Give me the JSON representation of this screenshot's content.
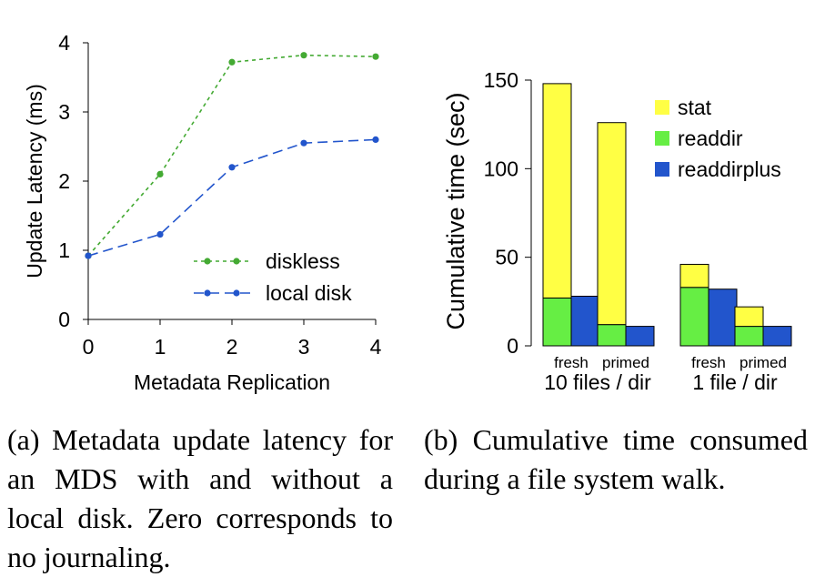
{
  "chart_data": [
    {
      "type": "line",
      "xlabel": "Metadata Replication",
      "ylabel": "Update Latency (ms)",
      "x": [
        0,
        1,
        2,
        3,
        4
      ],
      "xlim": [
        0,
        4
      ],
      "ylim": [
        0,
        4
      ],
      "xticks": [
        "0",
        "1",
        "2",
        "3",
        "4"
      ],
      "yticks": [
        "0",
        "1",
        "2",
        "3",
        "4"
      ],
      "grid": false,
      "legend_position": "bottom-right",
      "series": [
        {
          "name": "diskless",
          "values": [
            0.92,
            2.1,
            3.72,
            3.82,
            3.8
          ],
          "color": "#44aa33",
          "style": "dotted"
        },
        {
          "name": "local disk",
          "values": [
            0.92,
            1.23,
            2.2,
            2.55,
            2.6
          ],
          "color": "#2255cc",
          "style": "dashed"
        }
      ]
    },
    {
      "type": "bar",
      "stacked": true,
      "ylabel": "Cumulative time (sec)",
      "ylim": [
        0,
        150
      ],
      "yticks": [
        "0",
        "50",
        "100",
        "150"
      ],
      "grid": false,
      "legend_position": "top-right",
      "groups": [
        {
          "label": "10 files / dir",
          "subgroups": [
            {
              "label": "fresh",
              "readdir": 27,
              "stat": 121,
              "readdirplus": 28
            },
            {
              "label": "primed",
              "readdir": 12,
              "stat": 114,
              "readdirplus": 11
            }
          ]
        },
        {
          "label": "1 file / dir",
          "subgroups": [
            {
              "label": "fresh",
              "readdir": 33,
              "stat": 13,
              "readdirplus": 32
            },
            {
              "label": "primed",
              "readdir": 11,
              "stat": 11,
              "readdirplus": 11
            }
          ]
        }
      ],
      "legend": [
        {
          "name": "stat",
          "color": "#ffff44"
        },
        {
          "name": "readdir",
          "color": "#66ee44"
        },
        {
          "name": "readdirplus",
          "color": "#2255cc"
        }
      ]
    }
  ],
  "captions": {
    "a": "(a) Metadata update latency for an MDS with and without a local disk. Zero corresponds to no journaling.",
    "b": "(b) Cumulative time consumed during a file system walk."
  }
}
